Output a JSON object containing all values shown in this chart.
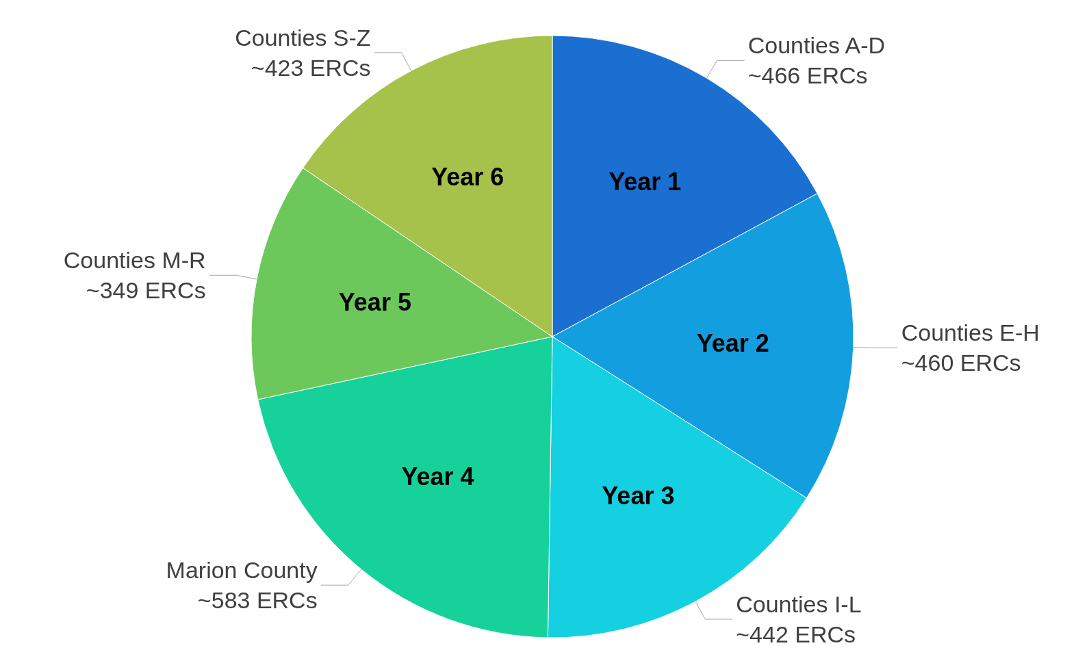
{
  "chart_data": {
    "type": "pie",
    "categories": [
      "Year 1",
      "Year 2",
      "Year 3",
      "Year 4",
      "Year 5",
      "Year 6"
    ],
    "values": [
      466,
      460,
      442,
      583,
      349,
      423
    ],
    "colors": [
      "#1a6fd0",
      "#139fdf",
      "#14d0e0",
      "#16d29a",
      "#6cc85a",
      "#a6c24a"
    ],
    "value_labels": [
      "Counties A-D\n~466 ERCs",
      "Counties E-H\n~460 ERCs",
      "Counties I-L\n~442 ERCs",
      "Marion County\n~583 ERCs",
      "Counties M-R\n~349 ERCs",
      "Counties S-Z\n~423 ERCs"
    ],
    "legend": false
  }
}
